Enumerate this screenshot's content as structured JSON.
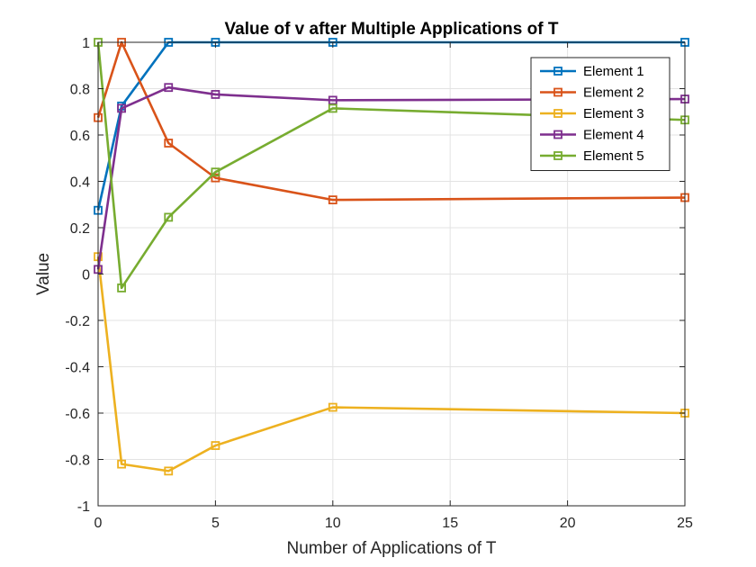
{
  "chart_data": {
    "type": "line",
    "title": "Value of v after Multiple Applications of T",
    "xlabel": "Number of Applications of T",
    "ylabel": "Value",
    "xlim": [
      0,
      25
    ],
    "ylim": [
      -1,
      1
    ],
    "xticks": [
      0,
      5,
      10,
      15,
      20,
      25
    ],
    "yticks": [
      -1,
      -0.8,
      -0.6,
      -0.4,
      -0.2,
      0,
      0.2,
      0.4,
      0.6,
      0.8,
      1
    ],
    "ytick_labels": [
      "-1",
      "-0.8",
      "-0.6",
      "-0.4",
      "-0.2",
      "0",
      "0.2",
      "0.4",
      "0.6",
      "0.8",
      "1"
    ],
    "xtick_labels": [
      "0",
      "5",
      "10",
      "15",
      "20",
      "25"
    ],
    "grid": true,
    "legend_position": "top-right",
    "marker": "square",
    "x": [
      0,
      1,
      3,
      5,
      10,
      25
    ],
    "series": [
      {
        "name": "Element 1",
        "color": "#0072BD",
        "values": [
          0.275,
          0.725,
          1.0,
          1.0,
          1.0,
          1.0
        ]
      },
      {
        "name": "Element 2",
        "color": "#D95319",
        "values": [
          0.675,
          1.0,
          0.565,
          0.415,
          0.32,
          0.33
        ]
      },
      {
        "name": "Element 3",
        "color": "#EDB120",
        "values": [
          0.075,
          -0.82,
          -0.85,
          -0.74,
          -0.575,
          -0.6
        ]
      },
      {
        "name": "Element 4",
        "color": "#7E2F8E",
        "values": [
          0.02,
          0.715,
          0.805,
          0.775,
          0.75,
          0.755
        ]
      },
      {
        "name": "Element 5",
        "color": "#77AC30",
        "values": [
          1.0,
          -0.06,
          0.245,
          0.44,
          0.715,
          0.665
        ]
      }
    ]
  }
}
